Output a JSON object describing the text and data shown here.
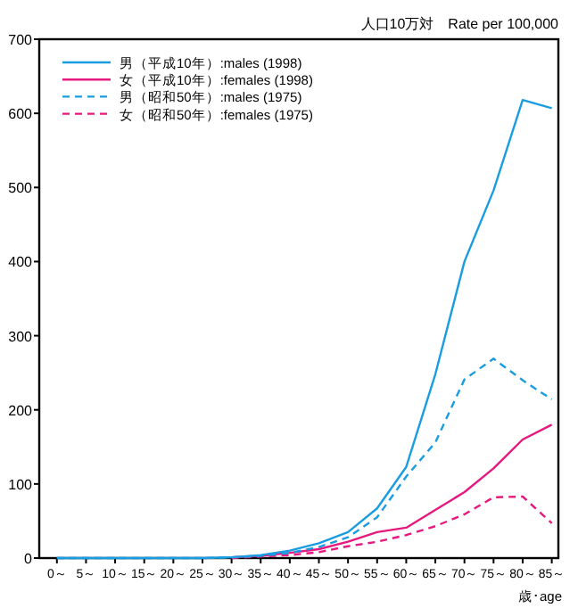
{
  "chart_data": {
    "type": "line",
    "title": "人口10万対　Rate per 100,000",
    "xlabel": "歳･age",
    "categories": [
      "0～",
      "5～",
      "10～",
      "15～",
      "20～",
      "25～",
      "30～",
      "35～",
      "40～",
      "45～",
      "50～",
      "55～",
      "60～",
      "65～",
      "70～",
      "75～",
      "80～",
      "85～"
    ],
    "series": [
      {
        "name": "男（平成10年）:males (1998)",
        "color": "#1a9de0",
        "line_style": "solid",
        "values": [
          0,
          0,
          0,
          0,
          0,
          0,
          1,
          4,
          10,
          20,
          35,
          67,
          123,
          248,
          400,
          496,
          618,
          607
        ]
      },
      {
        "name": "女（平成10年）:females (1998)",
        "color": "#e6197f",
        "line_style": "solid",
        "values": [
          null,
          null,
          null,
          null,
          null,
          null,
          1,
          3,
          7,
          12,
          22,
          35,
          41,
          65,
          89,
          121,
          160,
          180
        ]
      },
      {
        "name": "男（昭和50年）:males (1975)",
        "color": "#1a9de0",
        "line_style": "dashed",
        "values": [
          0,
          0,
          0,
          0,
          0,
          0,
          1,
          3,
          7,
          15,
          28,
          55,
          110,
          156,
          241,
          269,
          240,
          214
        ]
      },
      {
        "name": "女（昭和50年）:females (1975)",
        "color": "#e6197f",
        "line_style": "dashed",
        "values": [
          null,
          null,
          null,
          null,
          null,
          null,
          0,
          2,
          4,
          8,
          16,
          22,
          31,
          43,
          59,
          82,
          83,
          47
        ]
      }
    ],
    "ylim": [
      0,
      700
    ],
    "yticks": [
      0,
      100,
      200,
      300,
      400,
      500,
      600,
      700
    ],
    "legend": "top left",
    "marker": "none",
    "grid": false
  }
}
